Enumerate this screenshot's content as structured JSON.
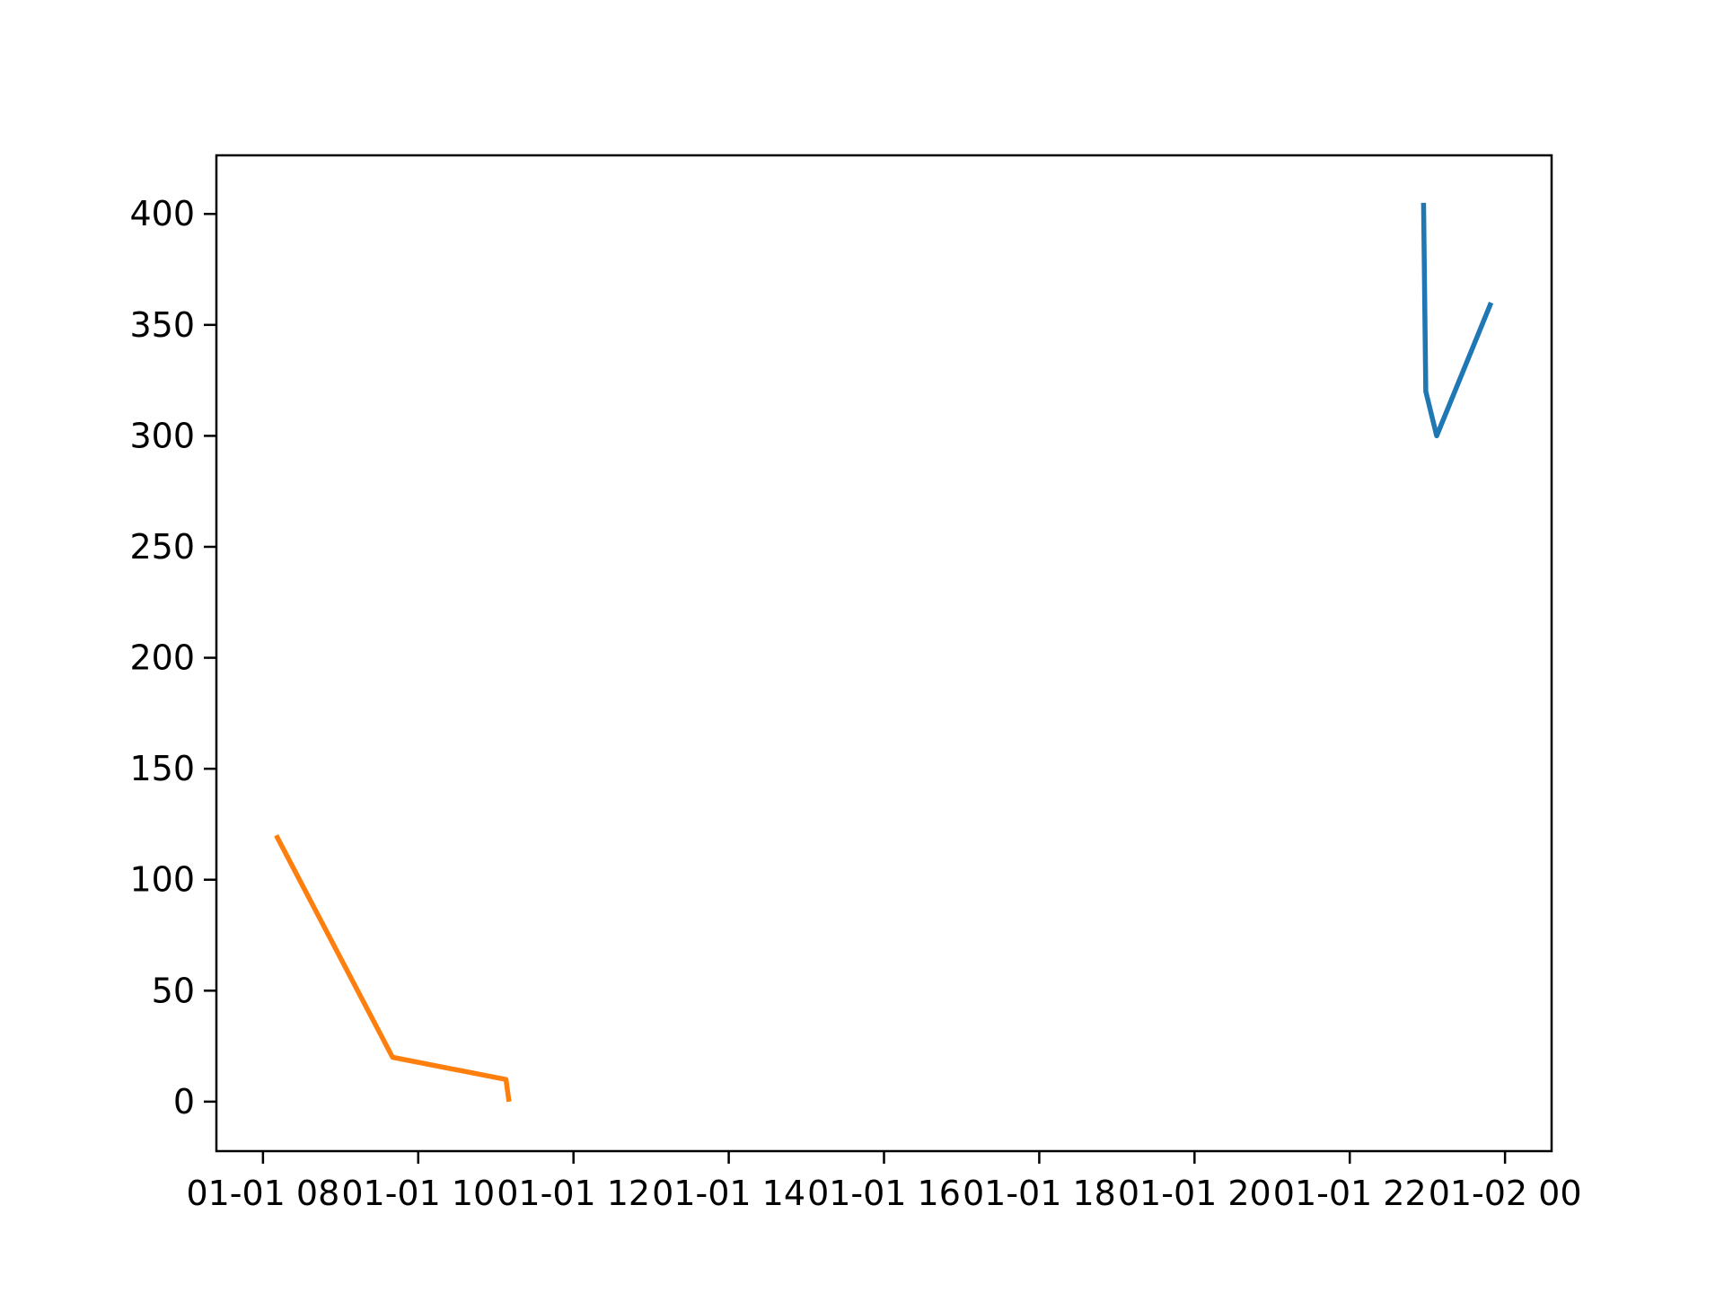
{
  "chart_data": {
    "type": "line",
    "title": "",
    "xlabel": "",
    "ylabel": "",
    "grid": false,
    "legend": null,
    "background_color": "#ffffff",
    "axis_color": "#000000",
    "x_axis": {
      "tick_labels": [
        "01-01 08",
        "01-01 10",
        "01-01 12",
        "01-01 14",
        "01-01 16",
        "01-01 18",
        "01-01 20",
        "01-01 22",
        "01-02 00"
      ],
      "tick_hours": [
        8,
        10,
        12,
        14,
        16,
        18,
        20,
        22,
        24
      ],
      "range_hours": [
        7.4,
        24.6
      ]
    },
    "y_axis": {
      "tick_labels": [
        "0",
        "50",
        "100",
        "150",
        "200",
        "250",
        "300",
        "350",
        "400"
      ],
      "ticks": [
        0,
        50,
        100,
        150,
        200,
        250,
        300,
        350,
        400
      ],
      "range": [
        -22.3,
        426.4
      ]
    },
    "series": [
      {
        "name": "series-blue",
        "color": "#1f77b4",
        "points": [
          {
            "time": "01-01 22:57",
            "x": 22.95,
            "y": 405
          },
          {
            "time": "01-01 22:59",
            "x": 22.98,
            "y": 320
          },
          {
            "time": "01-01 23:07",
            "x": 23.12,
            "y": 300
          },
          {
            "time": "01-01 23:49",
            "x": 23.82,
            "y": 360
          }
        ]
      },
      {
        "name": "series-orange",
        "color": "#ff7f0e",
        "points": [
          {
            "time": "01-01 08:10",
            "x": 8.17,
            "y": 120
          },
          {
            "time": "01-01 09:40",
            "x": 9.67,
            "y": 20
          },
          {
            "time": "01-01 11:08",
            "x": 11.13,
            "y": 10
          },
          {
            "time": "01-01 11:10",
            "x": 11.17,
            "y": 0
          }
        ]
      }
    ]
  }
}
